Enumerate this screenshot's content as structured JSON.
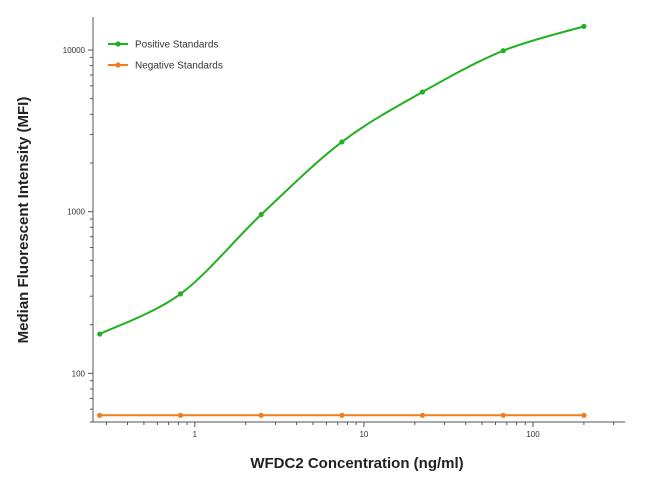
{
  "chart_data": {
    "type": "line",
    "xlabel": "WFDC2 Concentration (ng/ml)",
    "ylabel": "Median  Fluorescent Intensity  (MFI)",
    "x_scale": "log",
    "y_scale": "log",
    "xlim": [
      0.25,
      350
    ],
    "ylim": [
      50,
      16000
    ],
    "x_ticks": [
      1,
      10,
      100
    ],
    "x_tick_labels": [
      "1",
      "10",
      "100"
    ],
    "y_ticks": [
      100,
      1000,
      10000
    ],
    "y_tick_labels": [
      "100",
      "1000",
      "10000"
    ],
    "grid": false,
    "legend_position": "top-left",
    "series": [
      {
        "name": "Positive Standards",
        "color": "#22b022",
        "fit": "4PL curve",
        "points": [
          {
            "x": 0.274,
            "y": 175
          },
          {
            "x": 0.823,
            "y": 310
          },
          {
            "x": 2.47,
            "y": 960
          },
          {
            "x": 7.41,
            "y": 2700
          },
          {
            "x": 22.2,
            "y": 5500
          },
          {
            "x": 66.7,
            "y": 9900
          },
          {
            "x": 200,
            "y": 14000
          }
        ]
      },
      {
        "name": "Negative Standards",
        "color": "#f07d1a",
        "points": [
          {
            "x": 0.274,
            "y": 55
          },
          {
            "x": 0.823,
            "y": 55
          },
          {
            "x": 2.47,
            "y": 55
          },
          {
            "x": 7.41,
            "y": 55
          },
          {
            "x": 22.2,
            "y": 55
          },
          {
            "x": 66.7,
            "y": 55
          },
          {
            "x": 200,
            "y": 55
          }
        ]
      }
    ]
  }
}
